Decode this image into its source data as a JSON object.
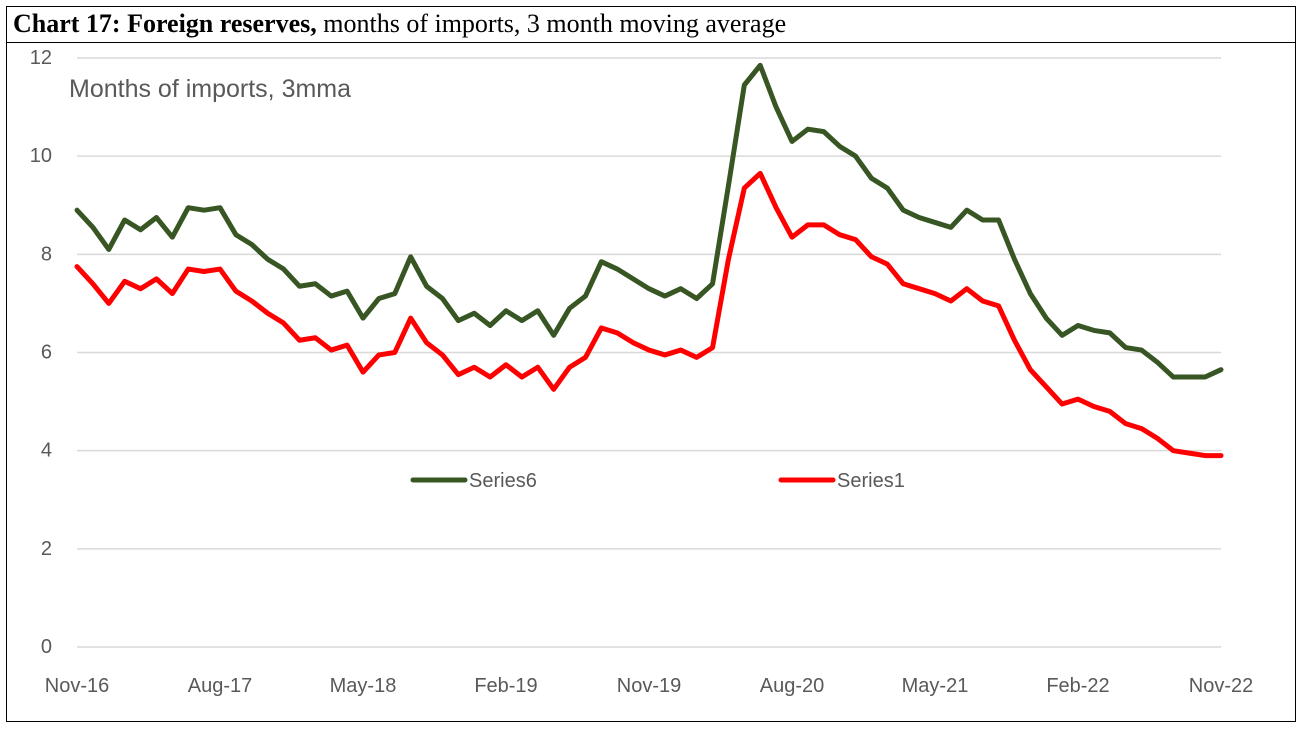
{
  "header": {
    "title_bold": "Chart 17: Foreign reserves,",
    "title_rest": " months of imports, 3 month moving average"
  },
  "chart_data": {
    "type": "line",
    "title": "Chart 17: Foreign reserves, months of imports, 3 month moving average",
    "annotation": "Months of imports, 3mma",
    "xlabel": "",
    "ylabel": "",
    "ylim": [
      0,
      12
    ],
    "yticks": [
      0,
      2,
      4,
      6,
      8,
      10,
      12
    ],
    "x_tick_labels": [
      "Nov-16",
      "Aug-17",
      "May-18",
      "Feb-19",
      "Nov-19",
      "Aug-20",
      "May-21",
      "Feb-22",
      "Nov-22"
    ],
    "x_tick_indices": [
      0,
      9,
      18,
      27,
      36,
      45,
      54,
      63,
      72
    ],
    "grid": true,
    "legend_position": "center",
    "series": [
      {
        "name": "Series6",
        "color": "#375623",
        "values": [
          8.9,
          8.55,
          8.1,
          8.7,
          8.5,
          8.75,
          8.35,
          8.95,
          8.9,
          8.95,
          8.4,
          8.2,
          7.9,
          7.7,
          7.35,
          7.4,
          7.15,
          7.25,
          6.7,
          7.1,
          7.2,
          7.95,
          7.35,
          7.1,
          6.65,
          6.8,
          6.55,
          6.85,
          6.65,
          6.85,
          6.35,
          6.9,
          7.15,
          7.85,
          7.7,
          7.5,
          7.3,
          7.15,
          7.3,
          7.1,
          7.4,
          9.4,
          11.45,
          11.85,
          11.0,
          10.3,
          10.55,
          10.5,
          10.2,
          10.0,
          9.55,
          9.35,
          8.9,
          8.75,
          8.65,
          8.55,
          8.9,
          8.7,
          8.7,
          7.9,
          7.2,
          6.7,
          6.35,
          6.55,
          6.45,
          6.4,
          6.1,
          6.05,
          5.8,
          5.5,
          5.5,
          5.5,
          5.65
        ]
      },
      {
        "name": "Series1",
        "color": "#ff0000",
        "values": [
          7.75,
          7.4,
          7.0,
          7.45,
          7.3,
          7.5,
          7.2,
          7.7,
          7.65,
          7.7,
          7.25,
          7.05,
          6.8,
          6.6,
          6.25,
          6.3,
          6.05,
          6.15,
          5.6,
          5.95,
          6.0,
          6.7,
          6.2,
          5.95,
          5.55,
          5.7,
          5.5,
          5.75,
          5.5,
          5.7,
          5.25,
          5.7,
          5.9,
          6.5,
          6.4,
          6.2,
          6.05,
          5.95,
          6.05,
          5.9,
          6.1,
          7.9,
          9.35,
          9.65,
          8.95,
          8.35,
          8.6,
          8.6,
          8.4,
          8.3,
          7.95,
          7.8,
          7.4,
          7.3,
          7.2,
          7.05,
          7.3,
          7.05,
          6.95,
          6.25,
          5.65,
          5.3,
          4.95,
          5.05,
          4.9,
          4.8,
          4.55,
          4.45,
          4.25,
          4.0,
          3.95,
          3.9,
          3.9
        ]
      }
    ]
  }
}
